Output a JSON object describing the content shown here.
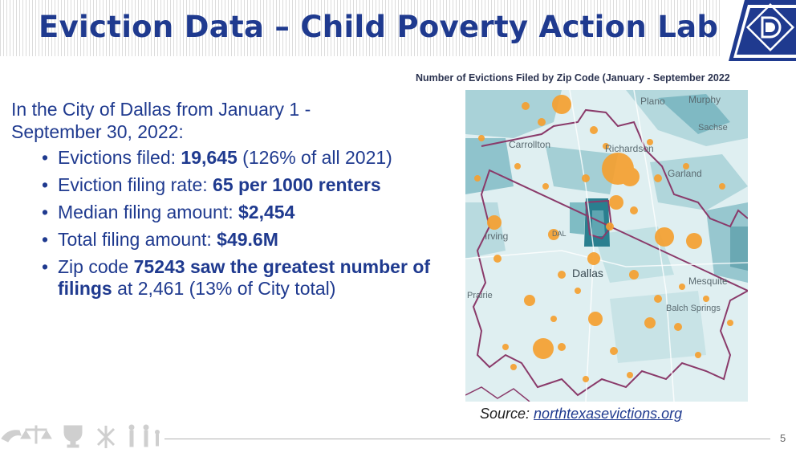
{
  "slide": {
    "title": "Eviction Data – Child Poverty Action Lab",
    "page_number": "5"
  },
  "chart": {
    "title": "Number of Evictions Filed by Zip Code (January - September 2022"
  },
  "body": {
    "intro": "In the City of Dallas from January 1 - September 30, 2022:",
    "bullet_symbol": "•",
    "bullets": [
      {
        "before": " Evictions filed: ",
        "bold": "19,645",
        "after": " (126% of all 2021)"
      },
      {
        "before": "Eviction filing rate: ",
        "bold": "65 per 1000 renters",
        "after": ""
      },
      {
        "before": " Median filing amount: ",
        "bold": "$2,454",
        "after": ""
      },
      {
        "before": "Total filing amount: ",
        "bold": "$49.6M",
        "after": ""
      },
      {
        "before": "Zip code ",
        "bold": "75243 saw the greatest number of filings",
        "after": " at 2,461 (13% of City total)"
      }
    ]
  },
  "map": {
    "labels": {
      "plano": "Plano",
      "murphy": "Murphy",
      "sachse": "Sachse",
      "carrollton": "Carrollton",
      "richardson": "Richardson",
      "garland": "Garland",
      "irving": "Irving",
      "dal": "DAL",
      "dallas": "Dallas",
      "mesquite": "Mesquite",
      "prairie": "Prairie",
      "balch_springs": "Balch Springs"
    },
    "colors": {
      "dot": "#f5a030",
      "boundary": "#8a3a6a",
      "land": "#c8e2e6",
      "dark_tract": "#2a7f8f"
    }
  },
  "source": {
    "label": "Source: ",
    "link": "northtexasevictions.org"
  },
  "colors": {
    "title": "#1f3a8f",
    "body_text": "#1f3a8f"
  }
}
